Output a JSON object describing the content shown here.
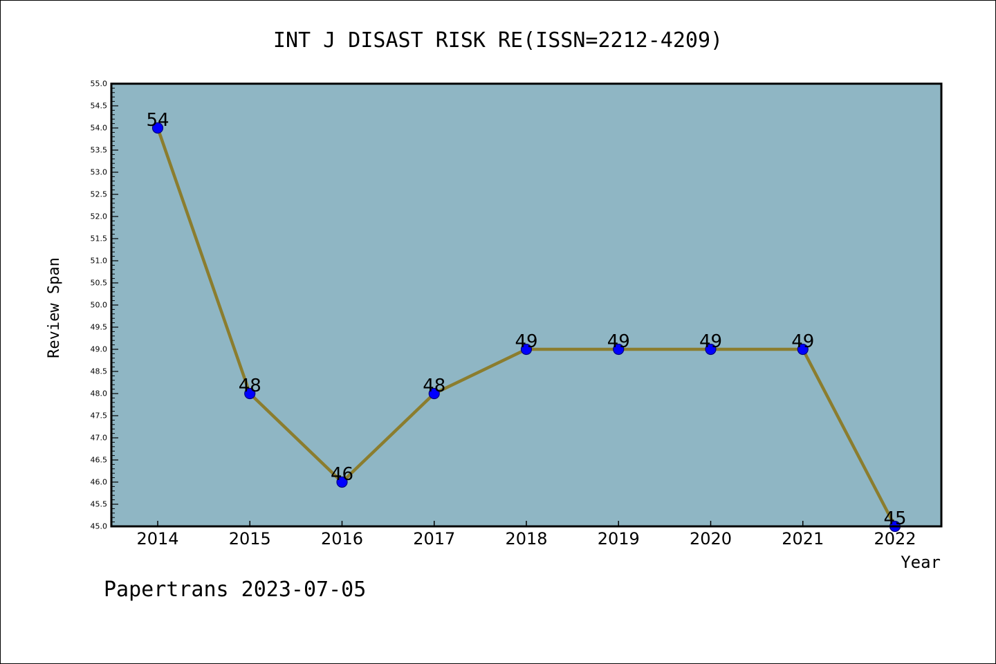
{
  "footer": {
    "note": "Papertrans 2023-07-05"
  },
  "chart_data": {
    "type": "line",
    "title": "INT J DISAST RISK RE(ISSN=2212-4209)",
    "xlabel": "Year",
    "ylabel": "Review Span",
    "categories": [
      "2014",
      "2015",
      "2016",
      "2017",
      "2018",
      "2019",
      "2020",
      "2021",
      "2022"
    ],
    "series": [
      {
        "values": [
          54,
          48,
          46,
          48,
          49,
          49,
          49,
          49,
          45
        ]
      }
    ],
    "data_labels": [
      "54",
      "48",
      "46",
      "48",
      "49",
      "49",
      "49",
      "49",
      "45"
    ],
    "ylim": [
      45.0,
      55.0
    ],
    "y_ticks": [
      "45.0",
      "45.5",
      "46.0",
      "46.5",
      "47.0",
      "47.5",
      "48.0",
      "48.5",
      "49.0",
      "49.5",
      "50.0",
      "50.5",
      "51.0",
      "51.5",
      "52.0",
      "52.5",
      "53.0",
      "53.5",
      "54.0",
      "54.5",
      "55.0"
    ],
    "grid": false,
    "legend": "none",
    "colors": {
      "plot_background": "#8fb6c4",
      "line": "#8b7d2e",
      "marker_fill": "#0000ff",
      "marker_edge": "#000080",
      "text": "#000000"
    }
  }
}
